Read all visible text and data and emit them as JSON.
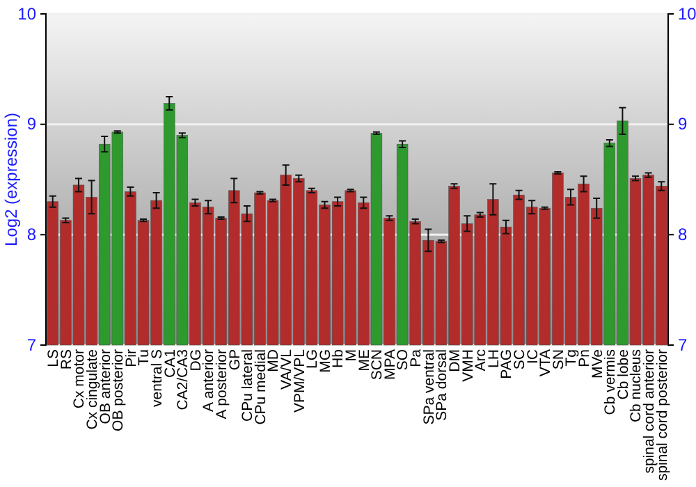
{
  "chart_data": {
    "type": "bar",
    "ylabel": "Log2 (expression)",
    "categories": [
      "LS",
      "RS",
      "Cx motor",
      "Cx cingulate",
      "OB anterior",
      "OB posterior",
      "Pir",
      "Tu",
      "ventral S",
      "CA1",
      "CA2/CA3",
      "DG",
      "A anterior",
      "A posterior",
      "GP",
      "CPu lateral",
      "CPu medial",
      "MD",
      "VA/VL",
      "VPM/VPL",
      "LG",
      "MG",
      "Hb",
      "M",
      "ME",
      "SCN",
      "MPA",
      "SO",
      "Pa",
      "SPa ventral",
      "SPa dorsal",
      "DM",
      "VMH",
      "Arc",
      "LH",
      "PAG",
      "SC",
      "IC",
      "VTA",
      "SN",
      "Tg",
      "Pn",
      "MVe",
      "Cb vermis",
      "Cb lobe",
      "Cb nucleus",
      "spinal cord anterior",
      "spinal cord posterior"
    ],
    "values": [
      8.3,
      8.13,
      8.45,
      8.34,
      8.82,
      8.93,
      8.39,
      8.13,
      8.31,
      9.19,
      8.9,
      8.29,
      8.25,
      8.15,
      8.4,
      8.19,
      8.38,
      8.31,
      8.54,
      8.51,
      8.4,
      8.27,
      8.3,
      8.4,
      8.29,
      8.92,
      8.15,
      8.82,
      8.12,
      7.95,
      7.94,
      8.44,
      8.1,
      8.18,
      8.32,
      8.07,
      8.36,
      8.25,
      8.24,
      8.56,
      8.34,
      8.46,
      8.24,
      8.83,
      9.03,
      8.51,
      8.54,
      8.44
    ],
    "errors": [
      0.05,
      0.02,
      0.06,
      0.15,
      0.07,
      0.01,
      0.04,
      0.01,
      0.07,
      0.06,
      0.02,
      0.03,
      0.06,
      0.01,
      0.11,
      0.07,
      0.01,
      0.01,
      0.09,
      0.03,
      0.02,
      0.03,
      0.04,
      0.01,
      0.05,
      0.01,
      0.02,
      0.03,
      0.02,
      0.1,
      0.01,
      0.02,
      0.07,
      0.02,
      0.14,
      0.06,
      0.04,
      0.06,
      0.01,
      0.01,
      0.07,
      0.07,
      0.09,
      0.03,
      0.12,
      0.02,
      0.02,
      0.04
    ],
    "colors": [
      "#b22c2c",
      "#b22c2c",
      "#b22c2c",
      "#b22c2c",
      "#2e9a2e",
      "#2e9a2e",
      "#b22c2c",
      "#b22c2c",
      "#b22c2c",
      "#2e9a2e",
      "#2e9a2e",
      "#b22c2c",
      "#b22c2c",
      "#b22c2c",
      "#b22c2c",
      "#b22c2c",
      "#b22c2c",
      "#b22c2c",
      "#b22c2c",
      "#b22c2c",
      "#b22c2c",
      "#b22c2c",
      "#b22c2c",
      "#b22c2c",
      "#b22c2c",
      "#2e9a2e",
      "#b22c2c",
      "#2e9a2e",
      "#b22c2c",
      "#b22c2c",
      "#b22c2c",
      "#b22c2c",
      "#b22c2c",
      "#b22c2c",
      "#b22c2c",
      "#b22c2c",
      "#b22c2c",
      "#b22c2c",
      "#b22c2c",
      "#b22c2c",
      "#b22c2c",
      "#b22c2c",
      "#b22c2c",
      "#2e9a2e",
      "#2e9a2e",
      "#b22c2c",
      "#b22c2c",
      "#b22c2c"
    ],
    "ylim": [
      7,
      10
    ],
    "yticks": [
      7,
      8,
      9,
      10
    ],
    "y2lim": [
      7,
      10
    ],
    "y2ticks": [
      7,
      8,
      9,
      10
    ],
    "grid": "y"
  }
}
